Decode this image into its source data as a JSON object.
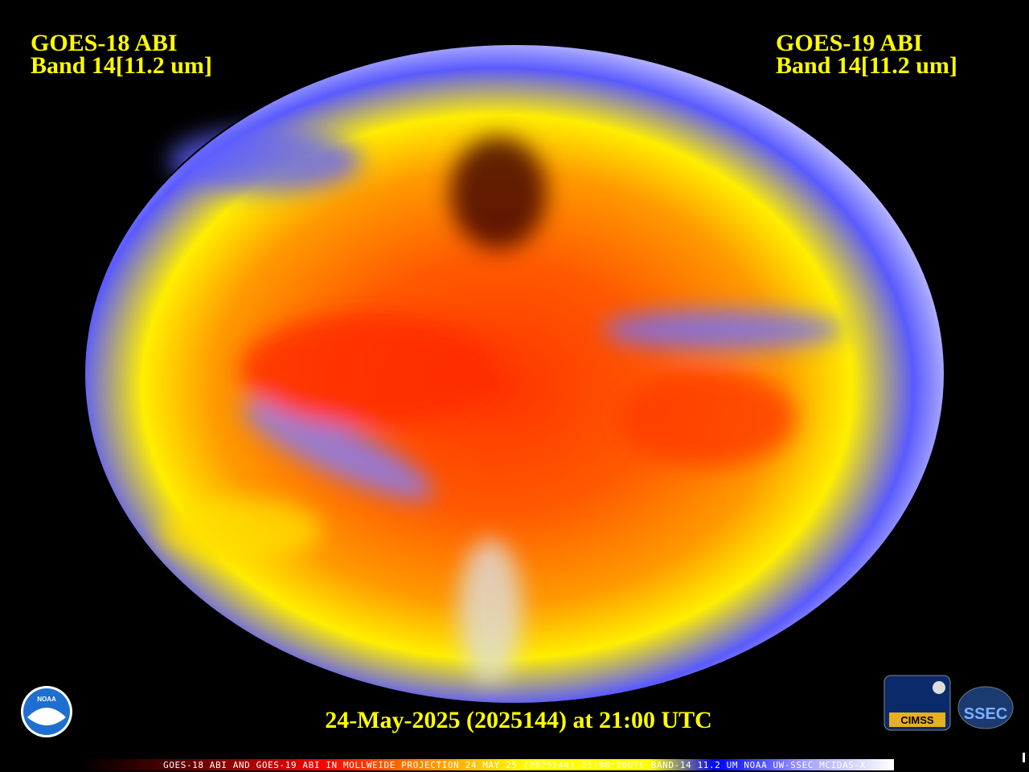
{
  "header": {
    "left": {
      "title": "GOES-18 ABI",
      "band": "Band 14[11.2 um]"
    },
    "right": {
      "title": "GOES-19 ABI",
      "band": "Band 14[11.2 um]"
    }
  },
  "caption": "24-May-2025 (2025144) at 21:00 UTC",
  "colorbar": {
    "label": "GOES-18 ABI AND GOES-19 ABI IN MOLLWEIDE PROJECTION 24 MAY 25 (2025144) 21:00:20UTC BAND-14 11.2 UM NOAA UW-SSEC MCIDAS-X"
  },
  "logos": {
    "noaa": "NOAA",
    "cimss": "CIMSS",
    "ssec": "SSEC"
  }
}
